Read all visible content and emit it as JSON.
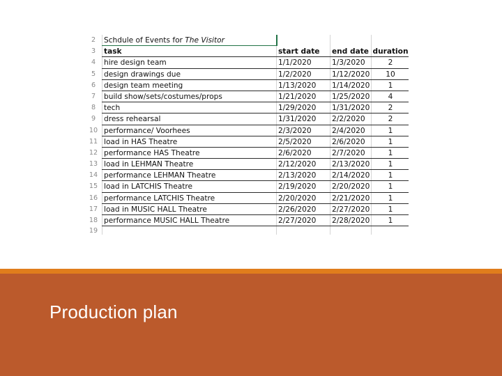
{
  "sheet": {
    "title_row": {
      "num": "2",
      "text": "Schdule of Events for ",
      "title_italic": "The Visitor"
    },
    "header": {
      "num": "3",
      "task": "task",
      "start": "start date",
      "end": "end date",
      "duration": "duration"
    },
    "rows": [
      {
        "num": "4",
        "task": "hire design team",
        "start": "1/1/2020",
        "end": "1/3/2020",
        "duration": "2"
      },
      {
        "num": "5",
        "task": "design drawings due",
        "start": "1/2/2020",
        "end": "1/12/2020",
        "duration": "10"
      },
      {
        "num": "6",
        "task": "design team meeting",
        "start": "1/13/2020",
        "end": "1/14/2020",
        "duration": "1"
      },
      {
        "num": "7",
        "task": "build show/sets/costumes/props",
        "start": "1/21/2020",
        "end": "1/25/2020",
        "duration": "4"
      },
      {
        "num": "8",
        "task": "tech",
        "start": "1/29/2020",
        "end": "1/31/2020",
        "duration": "2"
      },
      {
        "num": "9",
        "task": "dress rehearsal",
        "start": "1/31/2020",
        "end": "2/2/2020",
        "duration": "2"
      },
      {
        "num": "10",
        "task": "performance/ Voorhees",
        "start": "2/3/2020",
        "end": "2/4/2020",
        "duration": "1"
      },
      {
        "num": "11",
        "task": "load in HAS Theatre",
        "start": "2/5/2020",
        "end": "2/6/2020",
        "duration": "1"
      },
      {
        "num": "12",
        "task": "performance HAS Theatre",
        "start": "2/6/2020",
        "end": "2/7/2020",
        "duration": "1"
      },
      {
        "num": "13",
        "task": "load in LEHMAN Theatre",
        "start": "2/12/2020",
        "end": "2/13/2020",
        "duration": "1"
      },
      {
        "num": "14",
        "task": "performance LEHMAN Theatre",
        "start": "2/13/2020",
        "end": "2/14/2020",
        "duration": "1"
      },
      {
        "num": "15",
        "task": "load in LATCHIS Theatre",
        "start": "2/19/2020",
        "end": "2/20/2020",
        "duration": "1"
      },
      {
        "num": "16",
        "task": "performance LATCHIS Theatre",
        "start": "2/20/2020",
        "end": "2/21/2020",
        "duration": "1"
      },
      {
        "num": "17",
        "task": "load in MUSIC HALL Theatre",
        "start": "2/26/2020",
        "end": "2/27/2020",
        "duration": "1"
      },
      {
        "num": "18",
        "task": "performance MUSIC HALL Theatre",
        "start": "2/27/2020",
        "end": "2/28/2020",
        "duration": "1"
      }
    ],
    "last_row_num": "19"
  },
  "slide": {
    "title": "Production plan",
    "colors": {
      "accent_bar": "#e07d1c",
      "footer_bg": "#bb5a2c",
      "title_text": "#ffffff",
      "selection": "#217346"
    }
  }
}
